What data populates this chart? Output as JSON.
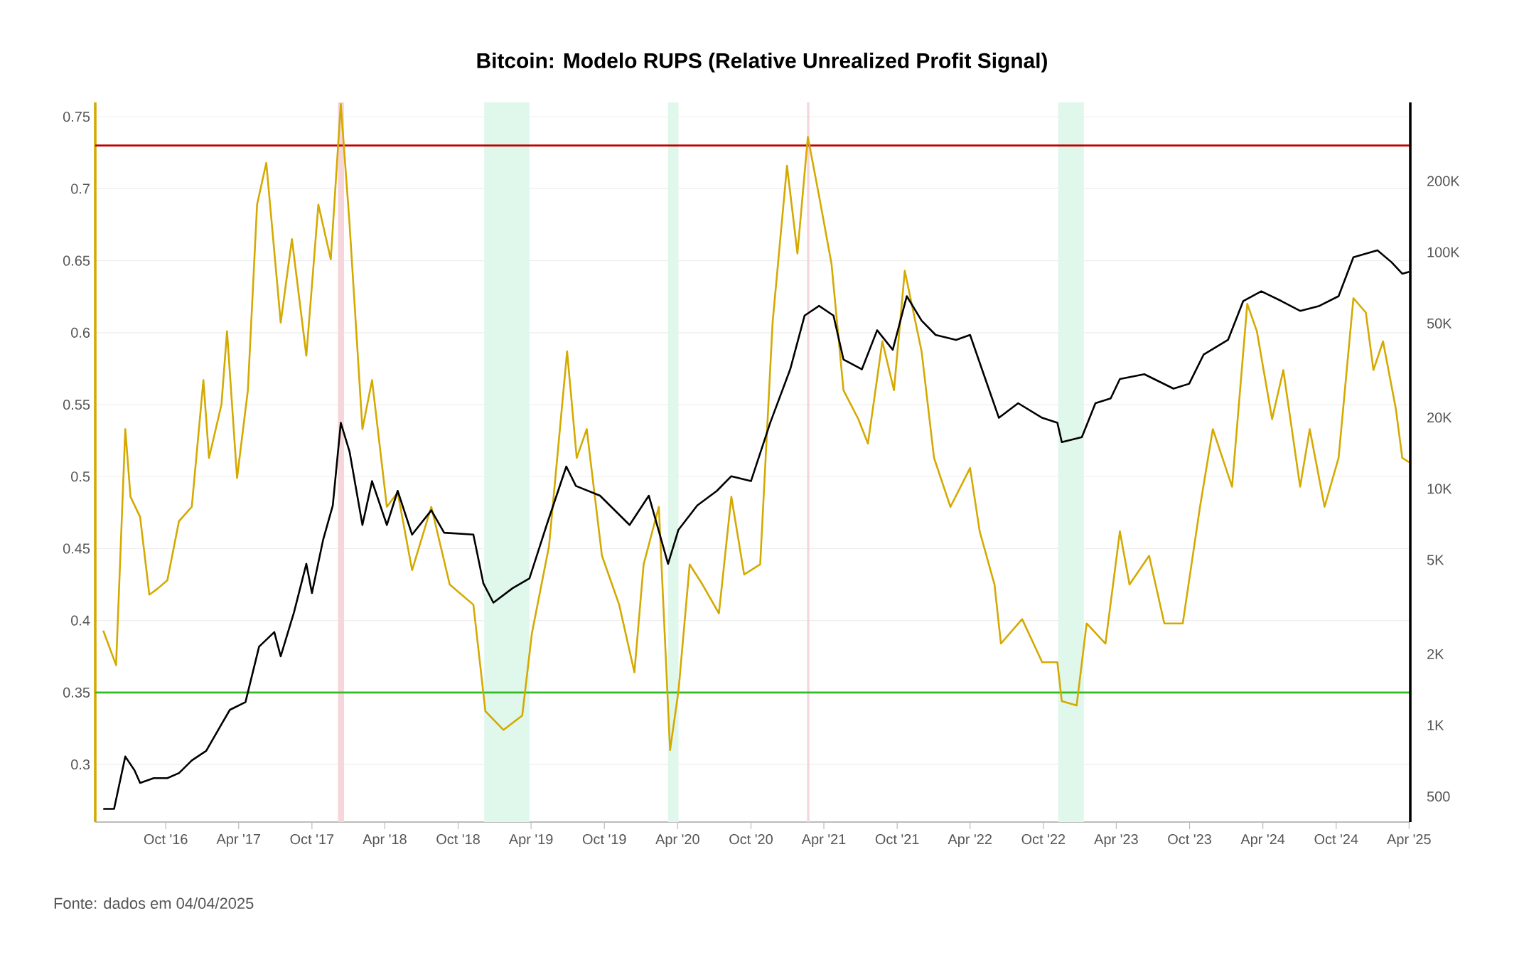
{
  "chart_data": {
    "type": "line",
    "title": "Bitcoin: Modelo RUPS (Relative Unrealized Profit Signal)",
    "annotations": [
      "Fonte: dados em 04/04/2025"
    ],
    "xlim": [
      "2016-04-08",
      "2025-04-04"
    ],
    "xticks": [
      {
        "value": "2016-10-01",
        "label": "Oct '16"
      },
      {
        "value": "2017-04-01",
        "label": "Apr '17"
      },
      {
        "value": "2017-10-01",
        "label": "Oct '17"
      },
      {
        "value": "2018-04-01",
        "label": "Apr '18"
      },
      {
        "value": "2018-10-01",
        "label": "Oct '18"
      },
      {
        "value": "2019-04-01",
        "label": "Apr '19"
      },
      {
        "value": "2019-10-01",
        "label": "Oct '19"
      },
      {
        "value": "2020-04-01",
        "label": "Apr '20"
      },
      {
        "value": "2020-10-01",
        "label": "Oct '20"
      },
      {
        "value": "2021-04-01",
        "label": "Apr '21"
      },
      {
        "value": "2021-10-01",
        "label": "Oct '21"
      },
      {
        "value": "2022-04-01",
        "label": "Apr '22"
      },
      {
        "value": "2022-10-01",
        "label": "Oct '22"
      },
      {
        "value": "2023-04-01",
        "label": "Apr '23"
      },
      {
        "value": "2023-10-01",
        "label": "Oct '23"
      },
      {
        "value": "2024-04-01",
        "label": "Apr '24"
      },
      {
        "value": "2024-10-01",
        "label": "Oct '24"
      },
      {
        "value": "2025-04-01",
        "label": "Apr '25"
      }
    ],
    "ylim": [
      0.26,
      0.76
    ],
    "yticks": [
      0.3,
      0.35,
      0.4,
      0.45,
      0.5,
      0.55,
      0.6,
      0.65,
      0.7,
      0.75
    ],
    "y2lim": [
      390,
      430000
    ],
    "y2ticks": [
      {
        "value": 500,
        "label": "500"
      },
      {
        "value": 1000,
        "label": "1K"
      },
      {
        "value": 2000,
        "label": "2K"
      },
      {
        "value": 5000,
        "label": "5K"
      },
      {
        "value": 10000,
        "label": "10K"
      },
      {
        "value": 20000,
        "label": "20K"
      },
      {
        "value": 50000,
        "label": "50K"
      },
      {
        "value": 100000,
        "label": "100K"
      },
      {
        "value": 200000,
        "label": "200K"
      }
    ],
    "log": "y2",
    "grid": "y",
    "ref_lines": [
      {
        "axis": "y",
        "value": 0.73,
        "color": "#c00000"
      },
      {
        "axis": "y",
        "value": 0.35,
        "color": "#33bb22"
      }
    ],
    "bands": [
      {
        "axis": "x",
        "from": "2017-12-05",
        "to": "2017-12-20",
        "color": "#f6d6da"
      },
      {
        "axis": "x",
        "from": "2018-12-05",
        "to": "2019-03-28",
        "color": "#e0f7ec"
      },
      {
        "axis": "x",
        "from": "2020-03-08",
        "to": "2020-04-03",
        "color": "#e0f7ec"
      },
      {
        "axis": "x",
        "from": "2021-02-18",
        "to": "2021-02-24",
        "color": "#f6d6da"
      },
      {
        "axis": "x",
        "from": "2022-11-07",
        "to": "2023-01-10",
        "color": "#e0f7ec"
      }
    ],
    "series": [
      {
        "color": "#d4aa00",
        "x": [
          "2016-04-28",
          "2016-05-30",
          "2016-06-22",
          "2016-07-05",
          "2016-07-29",
          "2016-08-21",
          "2016-09-10",
          "2016-10-05",
          "2016-11-03",
          "2016-12-05",
          "2017-01-03",
          "2017-01-17",
          "2017-02-17",
          "2017-03-03",
          "2017-03-28",
          "2017-04-24",
          "2017-05-17",
          "2017-06-09",
          "2017-07-15",
          "2017-08-12",
          "2017-09-17",
          "2017-10-17",
          "2017-11-17",
          "2017-12-12",
          "2018-01-03",
          "2018-02-04",
          "2018-02-28",
          "2018-04-06",
          "2018-05-03",
          "2018-06-08",
          "2018-07-26",
          "2018-09-10",
          "2018-11-08",
          "2018-12-08",
          "2019-01-22",
          "2019-03-10",
          "2019-04-03",
          "2019-05-16",
          "2019-06-30",
          "2019-07-24",
          "2019-08-18",
          "2019-09-25",
          "2019-11-07",
          "2019-12-15",
          "2020-01-07",
          "2020-02-14",
          "2020-03-13",
          "2020-04-03",
          "2020-05-01",
          "2020-06-02",
          "2020-07-13",
          "2020-08-13",
          "2020-09-14",
          "2020-10-24",
          "2020-11-24",
          "2020-12-30",
          "2021-01-25",
          "2021-02-20",
          "2021-03-20",
          "2021-04-20",
          "2021-05-20",
          "2021-06-26",
          "2021-07-20",
          "2021-08-25",
          "2021-09-23",
          "2021-10-20",
          "2021-12-01",
          "2022-01-01",
          "2022-02-11",
          "2022-04-01",
          "2022-04-25",
          "2022-06-01",
          "2022-06-17",
          "2022-08-09",
          "2022-09-28",
          "2022-11-05",
          "2022-11-16",
          "2022-12-23",
          "2023-01-17",
          "2023-03-05",
          "2023-04-10",
          "2023-05-04",
          "2023-06-22",
          "2023-07-30",
          "2023-09-14",
          "2023-10-27",
          "2023-11-28",
          "2024-01-15",
          "2024-02-22",
          "2024-03-17",
          "2024-04-24",
          "2024-05-22",
          "2024-07-03",
          "2024-07-27",
          "2024-09-02",
          "2024-10-07",
          "2024-11-13",
          "2024-12-14",
          "2025-01-02",
          "2025-01-26",
          "2025-02-27",
          "2025-03-15",
          "2025-04-01"
        ],
        "values": [
          0.393,
          0.369,
          0.533,
          0.486,
          0.472,
          0.418,
          0.422,
          0.428,
          0.469,
          0.479,
          0.567,
          0.513,
          0.55,
          0.601,
          0.499,
          0.56,
          0.689,
          0.718,
          0.607,
          0.665,
          0.584,
          0.689,
          0.651,
          0.759,
          0.675,
          0.533,
          0.567,
          0.479,
          0.489,
          0.435,
          0.479,
          0.425,
          0.411,
          0.337,
          0.324,
          0.334,
          0.391,
          0.452,
          0.587,
          0.513,
          0.533,
          0.445,
          0.411,
          0.364,
          0.439,
          0.479,
          0.31,
          0.351,
          0.439,
          0.425,
          0.405,
          0.486,
          0.432,
          0.439,
          0.607,
          0.716,
          0.655,
          0.736,
          0.695,
          0.648,
          0.56,
          0.54,
          0.523,
          0.594,
          0.56,
          0.643,
          0.587,
          0.513,
          0.479,
          0.506,
          0.462,
          0.425,
          0.384,
          0.401,
          0.371,
          0.371,
          0.344,
          0.341,
          0.398,
          0.384,
          0.462,
          0.425,
          0.445,
          0.398,
          0.398,
          0.479,
          0.533,
          0.493,
          0.62,
          0.601,
          0.54,
          0.574,
          0.493,
          0.533,
          0.479,
          0.513,
          0.624,
          0.614,
          0.574,
          0.594,
          0.547,
          0.513,
          0.51
        ]
      },
      {
        "color": "#000000",
        "axis": "y2",
        "x": [
          "2016-04-28",
          "2016-05-25",
          "2016-06-22",
          "2016-07-15",
          "2016-07-29",
          "2016-09-01",
          "2016-10-05",
          "2016-11-03",
          "2016-12-05",
          "2017-01-10",
          "2017-02-17",
          "2017-03-10",
          "2017-04-18",
          "2017-05-22",
          "2017-06-29",
          "2017-07-15",
          "2017-08-17",
          "2017-09-17",
          "2017-10-01",
          "2017-10-29",
          "2017-11-22",
          "2017-12-12",
          "2018-01-03",
          "2018-02-04",
          "2018-02-28",
          "2018-04-06",
          "2018-05-03",
          "2018-06-08",
          "2018-07-26",
          "2018-08-27",
          "2018-11-08",
          "2018-12-03",
          "2018-12-28",
          "2019-02-14",
          "2019-03-28",
          "2019-05-10",
          "2019-06-28",
          "2019-07-22",
          "2019-09-20",
          "2019-12-03",
          "2020-01-20",
          "2020-03-08",
          "2020-04-03",
          "2020-05-20",
          "2020-07-08",
          "2020-08-13",
          "2020-10-01",
          "2020-11-18",
          "2021-01-07",
          "2021-02-12",
          "2021-03-20",
          "2021-04-25",
          "2021-05-20",
          "2021-07-05",
          "2021-08-12",
          "2021-09-20",
          "2021-10-25",
          "2021-12-01",
          "2022-01-05",
          "2022-02-25",
          "2022-04-01",
          "2022-05-05",
          "2022-06-12",
          "2022-07-30",
          "2022-09-28",
          "2022-11-05",
          "2022-11-16",
          "2023-01-05",
          "2023-02-08",
          "2023-03-18",
          "2023-04-10",
          "2023-06-10",
          "2023-08-22",
          "2023-09-30",
          "2023-11-05",
          "2024-01-05",
          "2024-02-12",
          "2024-03-28",
          "2024-05-17",
          "2024-07-03",
          "2024-08-20",
          "2024-10-07",
          "2024-11-13",
          "2025-01-12",
          "2025-02-16",
          "2025-03-15",
          "2025-04-01"
        ],
        "values": [
          443,
          443,
          738,
          645,
          571,
          598,
          598,
          628,
          710,
          780,
          1009,
          1162,
          1253,
          2150,
          2478,
          1957,
          2999,
          4814,
          3622,
          6097,
          8500,
          19000,
          14320,
          7030,
          10770,
          7030,
          9800,
          6400,
          8110,
          6520,
          6400,
          3980,
          3300,
          3800,
          4180,
          7030,
          12420,
          10280,
          9350,
          7030,
          9350,
          4814,
          6710,
          8500,
          9800,
          11300,
          10770,
          19000,
          32000,
          54000,
          59300,
          54000,
          35200,
          32000,
          46800,
          38700,
          65200,
          51400,
          44700,
          42600,
          44700,
          30500,
          19950,
          23000,
          19950,
          19000,
          15740,
          16520,
          23000,
          24100,
          29100,
          30500,
          26500,
          27800,
          36900,
          42600,
          62200,
          68400,
          62200,
          56500,
          59300,
          65200,
          95200,
          101800,
          90800,
          81100,
          82600
        ]
      }
    ]
  }
}
